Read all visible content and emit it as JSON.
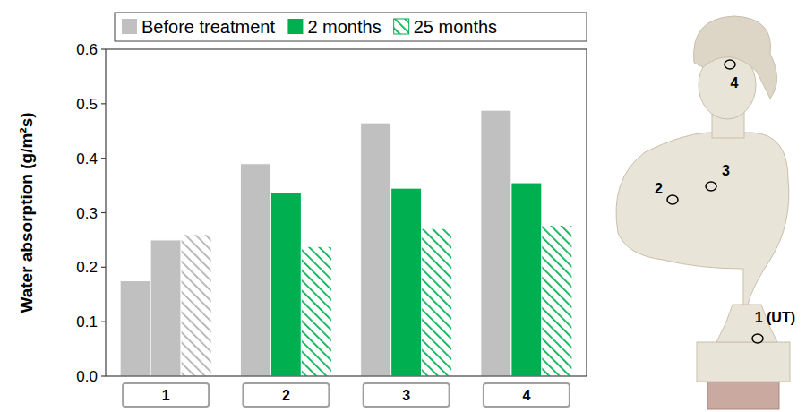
{
  "chart_data": {
    "type": "bar",
    "y_label": "Water absorption (g/m²s)",
    "categories": [
      "1",
      "2",
      "3",
      "4"
    ],
    "series": [
      {
        "name": "Before treatment",
        "color": "#c0c0c0",
        "values": [
          0.175,
          0.39,
          0.465,
          0.488
        ]
      },
      {
        "name": "2 months",
        "color": "#00b050",
        "colors": [
          "#c0c0c0",
          "#00b050",
          "#00b050",
          "#00b050"
        ],
        "values": [
          0.25,
          0.337,
          0.345,
          0.355
        ]
      },
      {
        "name": "25 months",
        "color": "#00b050",
        "colors": [
          "#b0b0b0",
          "#00b050",
          "#00b050",
          "#00b050"
        ],
        "line_style": "hatched",
        "values": [
          0.26,
          0.238,
          0.271,
          0.277
        ]
      }
    ],
    "ylim": [
      0,
      0.6
    ],
    "yticks": [
      {
        "value": 0,
        "label": "0.0"
      },
      0.1,
      0.2,
      0.3,
      0.4,
      0.5,
      0.6
    ],
    "grid": false,
    "legend": "top",
    "annotations": [
      "4",
      "2",
      "3",
      "1 (UT)"
    ]
  }
}
